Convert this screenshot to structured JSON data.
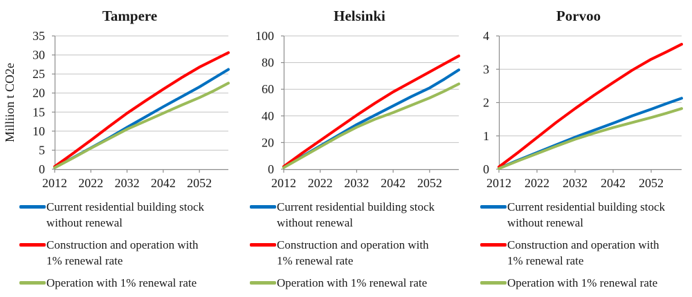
{
  "figure": {
    "background": "#ffffff",
    "colors": {
      "blue": "#0070C0",
      "red": "#FF0000",
      "green": "#9BBB59",
      "gridline": "#C3C3C3",
      "axis": "#8C8C8C",
      "text": "#1A1A1A"
    },
    "legend": {
      "items": [
        {
          "color_key": "blue",
          "label": "Current residential building stock\nwithout renewal"
        },
        {
          "color_key": "red",
          "label": "Construction and operation with\n1% renewal rate"
        },
        {
          "color_key": "green",
          "label": "Operation with 1% renewal rate"
        }
      ]
    }
  },
  "chart_data": [
    {
      "type": "line",
      "title": "Tampere",
      "ylabel": "Milliion t CO2e",
      "xlabel": "",
      "grid": true,
      "legend_position": "bottom",
      "ylim": [
        0,
        35
      ],
      "yticks": [
        0,
        5,
        10,
        15,
        20,
        25,
        30,
        35
      ],
      "xlim": [
        2012,
        2060
      ],
      "xticks": [
        2012,
        2022,
        2032,
        2042,
        2052
      ],
      "x": [
        2012,
        2017,
        2022,
        2027,
        2032,
        2037,
        2042,
        2047,
        2052,
        2056,
        2060
      ],
      "series": [
        {
          "name": "Current residential building stock without renewal",
          "color_key": "blue",
          "values": [
            0.4,
            3.0,
            5.6,
            8.2,
            11.0,
            13.7,
            16.4,
            19.0,
            21.6,
            23.9,
            26.2
          ]
        },
        {
          "name": "Construction and operation with 1% renewal rate",
          "color_key": "red",
          "values": [
            0.7,
            4.1,
            7.6,
            11.2,
            14.7,
            17.9,
            21.0,
            24.0,
            26.8,
            28.7,
            30.6
          ]
        },
        {
          "name": "Operation with 1% renewal rate",
          "color_key": "green",
          "values": [
            0.4,
            2.9,
            5.5,
            8.0,
            10.5,
            12.6,
            14.7,
            16.8,
            18.8,
            20.6,
            22.6
          ]
        }
      ]
    },
    {
      "type": "line",
      "title": "Helsinki",
      "ylabel": "",
      "xlabel": "",
      "grid": true,
      "legend_position": "bottom",
      "ylim": [
        0,
        100
      ],
      "yticks": [
        0,
        20,
        40,
        60,
        80,
        100
      ],
      "xlim": [
        2012,
        2060
      ],
      "xticks": [
        2012,
        2022,
        2032,
        2042,
        2052
      ],
      "x": [
        2012,
        2017,
        2022,
        2027,
        2032,
        2037,
        2042,
        2047,
        2052,
        2056,
        2060
      ],
      "series": [
        {
          "name": "Current residential building stock without renewal",
          "color_key": "blue",
          "values": [
            1.5,
            9.5,
            17.5,
            25.5,
            33.5,
            40.5,
            47.5,
            54.5,
            61.0,
            67.5,
            74.5
          ]
        },
        {
          "name": "Construction and operation with 1% renewal rate",
          "color_key": "red",
          "values": [
            2.0,
            12.0,
            21.5,
            31.0,
            40.5,
            49.5,
            58.0,
            65.5,
            73.0,
            79.0,
            85.0
          ]
        },
        {
          "name": "Operation with 1% renewal rate",
          "color_key": "green",
          "values": [
            1.2,
            9.0,
            16.8,
            24.5,
            31.5,
            37.5,
            42.5,
            48.0,
            53.5,
            58.5,
            64.0
          ]
        }
      ]
    },
    {
      "type": "line",
      "title": "Porvoo",
      "ylabel": "",
      "xlabel": "",
      "grid": true,
      "legend_position": "bottom",
      "ylim": [
        0,
        4
      ],
      "yticks": [
        0,
        1,
        2,
        3,
        4
      ],
      "xlim": [
        2012,
        2060
      ],
      "xticks": [
        2012,
        2022,
        2032,
        2042,
        2052
      ],
      "x": [
        2012,
        2017,
        2022,
        2027,
        2032,
        2037,
        2042,
        2047,
        2052,
        2056,
        2060
      ],
      "series": [
        {
          "name": "Current residential building stock without renewal",
          "color_key": "blue",
          "values": [
            0.03,
            0.27,
            0.5,
            0.73,
            0.96,
            1.17,
            1.38,
            1.6,
            1.8,
            1.97,
            2.13
          ]
        },
        {
          "name": "Construction and operation with 1% renewal rate",
          "color_key": "red",
          "values": [
            0.07,
            0.5,
            0.95,
            1.4,
            1.82,
            2.22,
            2.6,
            2.97,
            3.3,
            3.52,
            3.75
          ]
        },
        {
          "name": "Operation with 1% renewal rate",
          "color_key": "green",
          "values": [
            0.02,
            0.25,
            0.47,
            0.69,
            0.9,
            1.08,
            1.25,
            1.4,
            1.55,
            1.68,
            1.82
          ]
        }
      ]
    }
  ]
}
